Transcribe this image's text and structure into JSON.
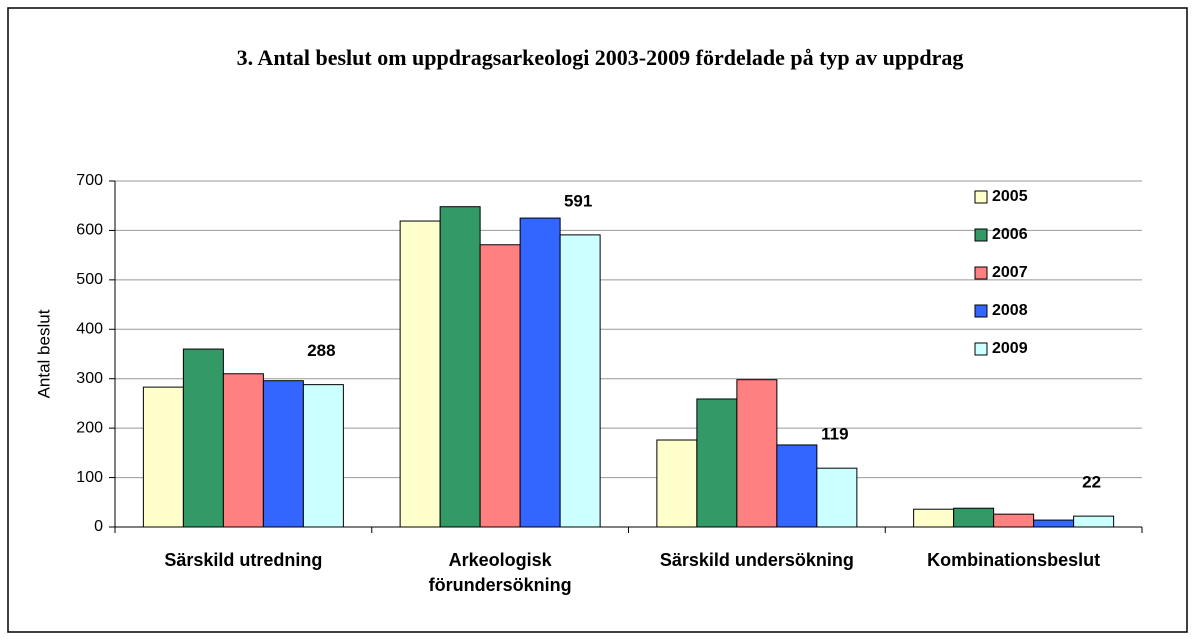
{
  "chart_data": {
    "type": "bar",
    "title": "3. Antal beslut om uppdragsarkeologi 2003-2009 fördelade på typ av uppdrag",
    "y_label": "Antal beslut",
    "categories": [
      "Särskild utredning",
      "Arkeologisk förundersökning",
      "Särskild undersökning",
      "Kombinationsbeslut"
    ],
    "series": [
      {
        "name": "2005",
        "color": "#ffffcc",
        "values": [
          283,
          619,
          176,
          36
        ]
      },
      {
        "name": "2006",
        "color": "#339966",
        "values": [
          360,
          648,
          259,
          38
        ]
      },
      {
        "name": "2007",
        "color": "#ff8080",
        "values": [
          310,
          571,
          298,
          26
        ]
      },
      {
        "name": "2008",
        "color": "#3366ff",
        "values": [
          296,
          625,
          166,
          14
        ]
      },
      {
        "name": "2009",
        "color": "#ccffff",
        "values": [
          288,
          591,
          119,
          22
        ],
        "show_labels": true
      }
    ],
    "ylim": [
      0,
      700
    ],
    "yticks": [
      0,
      100,
      200,
      300,
      400,
      500,
      600,
      700
    ],
    "grid": true,
    "legend": "right"
  }
}
